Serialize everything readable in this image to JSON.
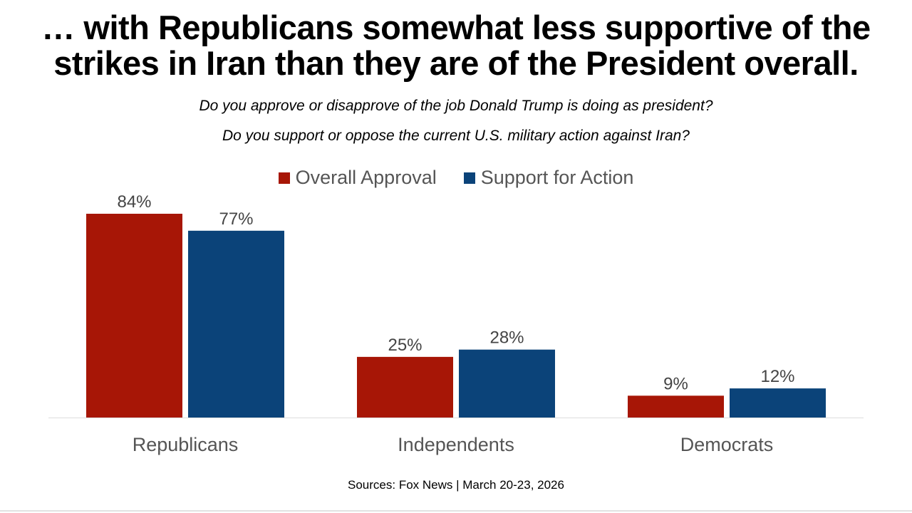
{
  "title_lines": [
    "… with Republicans somewhat less supportive of the",
    "strikes in Iran than they are of the President overall."
  ],
  "subtitles": [
    "Do you approve or disapprove of the job Donald Trump is doing as president?",
    "Do you support or oppose the current U.S. military action against Iran?"
  ],
  "source": "Sources: Fox News | March 20-23, 2026",
  "colors": {
    "approval": "#A71606",
    "support": "#0B4379",
    "axis": "#dddddd",
    "label": "#444444",
    "category": "#555555"
  },
  "chart_data": {
    "type": "bar",
    "categories": [
      "Republicans",
      "Independents",
      "Democrats"
    ],
    "series": [
      {
        "name": "Overall Approval",
        "values": [
          84,
          25,
          9
        ],
        "labels": [
          "84%",
          "25%",
          "9%"
        ]
      },
      {
        "name": "Support for Action",
        "values": [
          77,
          28,
          12
        ],
        "labels": [
          "77%",
          "28%",
          "12%"
        ]
      }
    ],
    "legend": "top-center",
    "ylim": [
      0,
      84
    ],
    "grid": false
  }
}
